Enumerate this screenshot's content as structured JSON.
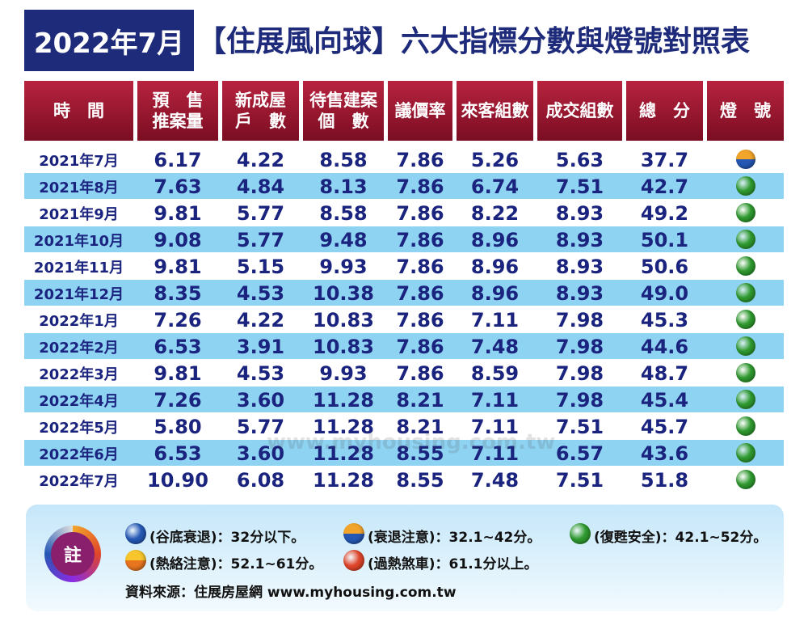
{
  "header": {
    "badge": "2022年7月",
    "title": "【住展風向球】六大指標分數與燈號對照表"
  },
  "table": {
    "columns": [
      [
        "時　間"
      ],
      [
        "預　售",
        "推案量"
      ],
      [
        "新成屋",
        "戶　數"
      ],
      [
        "待售建案",
        "個　數"
      ],
      [
        "議價率"
      ],
      [
        "來客組數"
      ],
      [
        "成交組數"
      ],
      [
        "總　分"
      ],
      [
        "燈　號"
      ]
    ],
    "rows": [
      {
        "cells": [
          "2021年7月",
          "6.17",
          "4.22",
          "8.58",
          "7.86",
          "5.26",
          "5.63",
          "37.7"
        ],
        "light": [
          "#f2a52a",
          "#2558b5"
        ]
      },
      {
        "cells": [
          "2021年8月",
          "7.63",
          "4.84",
          "8.13",
          "7.86",
          "6.74",
          "7.51",
          "42.7"
        ],
        "light": [
          "#2f9a2f"
        ]
      },
      {
        "cells": [
          "2021年9月",
          "9.81",
          "5.77",
          "8.58",
          "7.86",
          "8.22",
          "8.93",
          "49.2"
        ],
        "light": [
          "#2f9a2f"
        ]
      },
      {
        "cells": [
          "2021年10月",
          "9.08",
          "5.77",
          "9.48",
          "7.86",
          "8.96",
          "8.93",
          "50.1"
        ],
        "light": [
          "#2f9a2f"
        ]
      },
      {
        "cells": [
          "2021年11月",
          "9.81",
          "5.15",
          "9.93",
          "7.86",
          "8.96",
          "8.93",
          "50.6"
        ],
        "light": [
          "#2f9a2f"
        ]
      },
      {
        "cells": [
          "2021年12月",
          "8.35",
          "4.53",
          "10.38",
          "7.86",
          "8.96",
          "8.93",
          "49.0"
        ],
        "light": [
          "#2f9a2f"
        ]
      },
      {
        "cells": [
          "2022年1月",
          "7.26",
          "4.22",
          "10.83",
          "7.86",
          "7.11",
          "7.98",
          "45.3"
        ],
        "light": [
          "#2f9a2f"
        ]
      },
      {
        "cells": [
          "2022年2月",
          "6.53",
          "3.91",
          "10.83",
          "7.86",
          "7.48",
          "7.98",
          "44.6"
        ],
        "light": [
          "#2f9a2f"
        ]
      },
      {
        "cells": [
          "2022年3月",
          "9.81",
          "4.53",
          "9.93",
          "7.86",
          "8.59",
          "7.98",
          "48.7"
        ],
        "light": [
          "#2f9a2f"
        ]
      },
      {
        "cells": [
          "2022年4月",
          "7.26",
          "3.60",
          "11.28",
          "8.21",
          "7.11",
          "7.98",
          "45.4"
        ],
        "light": [
          "#2f9a2f"
        ]
      },
      {
        "cells": [
          "2022年5月",
          "5.80",
          "5.77",
          "11.28",
          "8.21",
          "7.11",
          "7.51",
          "45.7"
        ],
        "light": [
          "#2f9a2f"
        ]
      },
      {
        "cells": [
          "2022年6月",
          "6.53",
          "3.60",
          "11.28",
          "8.55",
          "7.11",
          "6.57",
          "43.6"
        ],
        "light": [
          "#2f9a2f"
        ]
      },
      {
        "cells": [
          "2022年7月",
          "10.90",
          "6.08",
          "11.28",
          "8.55",
          "7.48",
          "7.51",
          "51.8"
        ],
        "light": [
          "#2f9a2f"
        ]
      }
    ]
  },
  "watermark": "www.myhousing.com.tw",
  "notes": {
    "label": "註",
    "legend": [
      {
        "text": "(谷底衰退)：32分以下。",
        "light": [
          "#2558b5"
        ]
      },
      {
        "text": "(衰退注意)：32.1~42分。",
        "light": [
          "#f2a52a",
          "#2558b5"
        ]
      },
      {
        "text": "(復甦安全)：42.1~52分。",
        "light": [
          "#2f9a2f"
        ]
      },
      {
        "text": "(熱絡注意)：52.1~61分。",
        "light": [
          "#f7c52c",
          "#e9751f"
        ]
      },
      {
        "text": "(過熱煞車)：61.1分以上。",
        "light": [
          "#e0452a"
        ]
      }
    ],
    "source": "資料來源：住展房屋網 www.myhousing.com.tw"
  }
}
